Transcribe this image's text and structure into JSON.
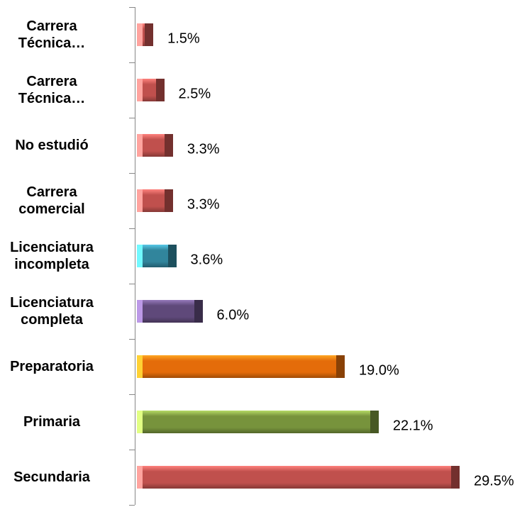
{
  "chart_data": {
    "type": "bar",
    "orientation": "horizontal",
    "categories": [
      "Carrera\nTécnica…",
      "Carrera\nTécnica…",
      "No estudió",
      "Carrera\ncomercial",
      "Licenciatura\nincompleta",
      "Licenciatura\ncompleta",
      "Preparatoria",
      "Primaria",
      "Secundaria"
    ],
    "values": [
      1.5,
      2.5,
      3.3,
      3.3,
      3.6,
      6.0,
      19.0,
      22.1,
      29.5
    ],
    "value_labels": [
      "1.5%",
      "2.5%",
      "3.3%",
      "3.3%",
      "3.6%",
      "6.0%",
      "19.0%",
      "22.1%",
      "29.5%"
    ],
    "colors": [
      "#c0504d",
      "#c0504d",
      "#c0504d",
      "#c0504d",
      "#31859c",
      "#5f497a",
      "#e46c0a",
      "#77933c",
      "#c0504d"
    ]
  }
}
